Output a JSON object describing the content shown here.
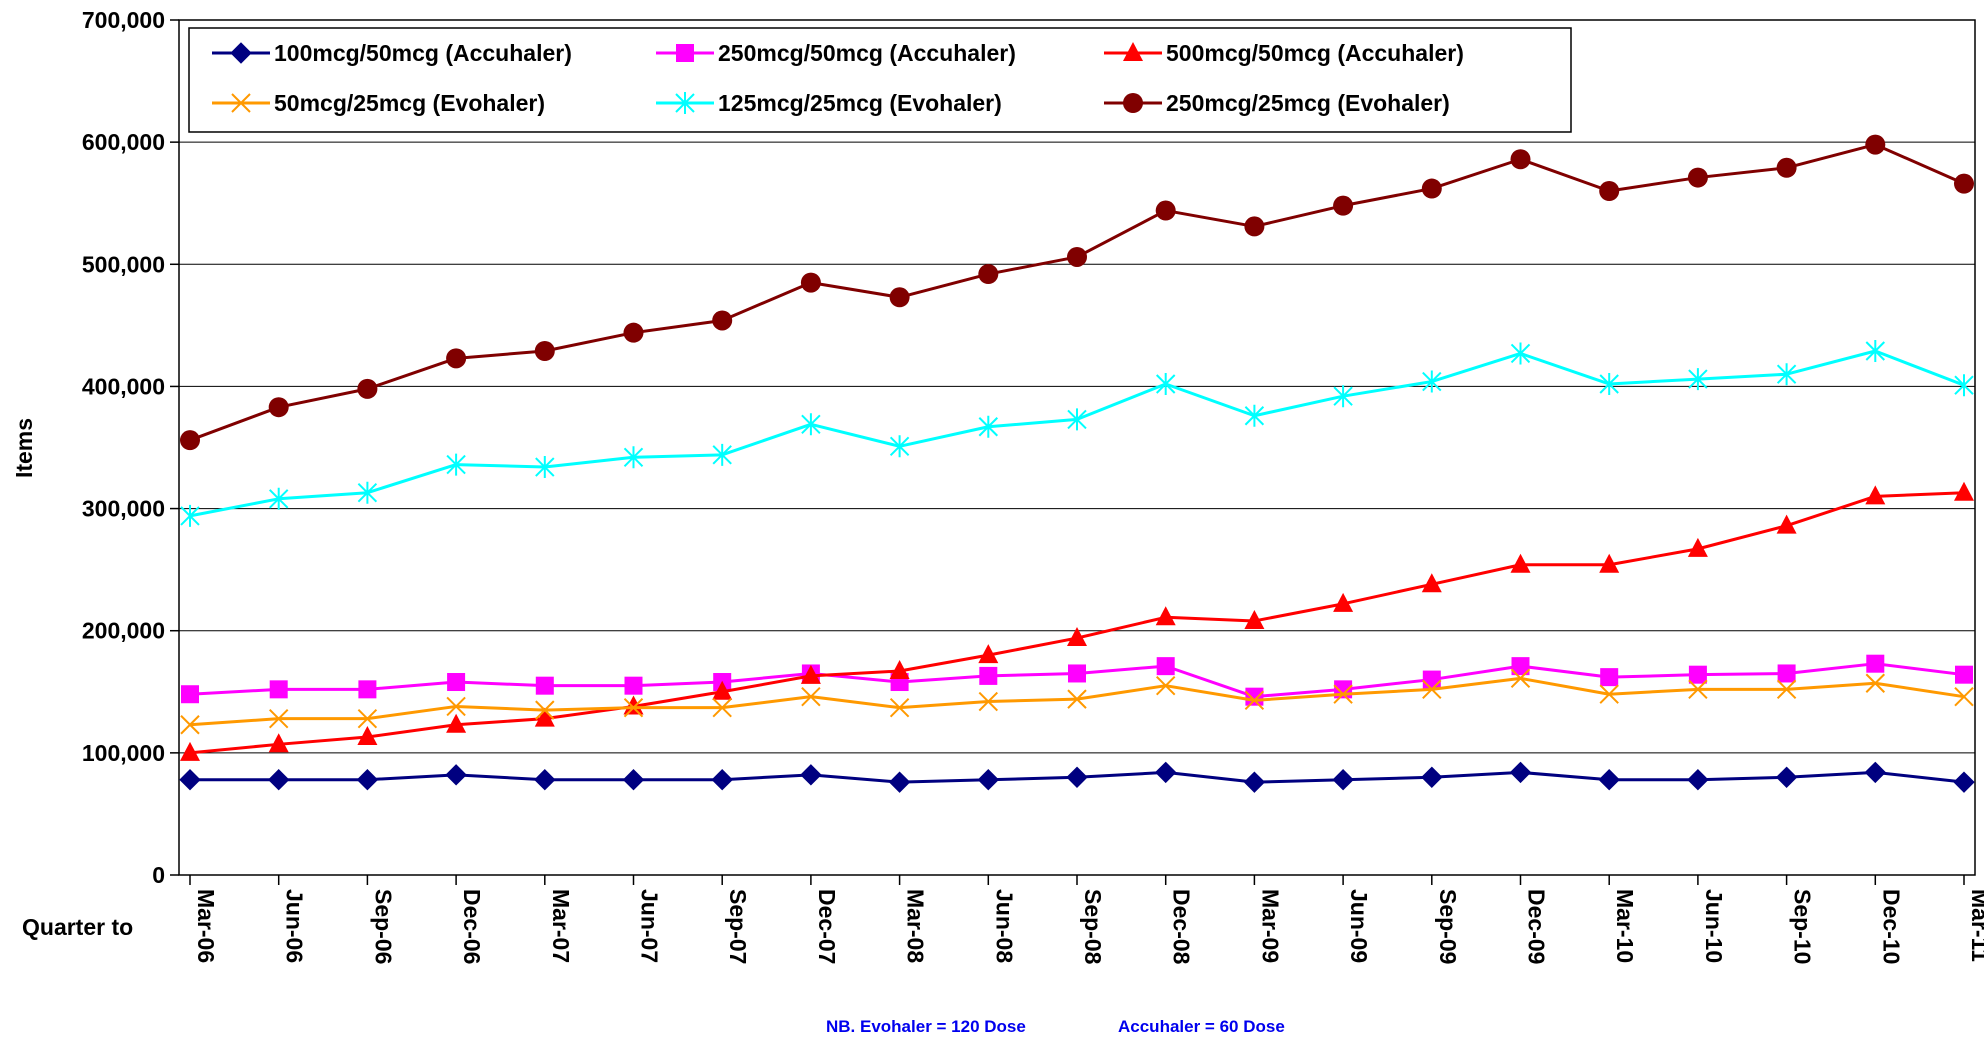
{
  "chart_data": {
    "type": "line",
    "title": "",
    "ylabel": "Items",
    "xlabel": "Quarter to",
    "ylim": [
      0,
      700000
    ],
    "yticks": [
      0,
      100000,
      200000,
      300000,
      400000,
      500000,
      600000,
      700000
    ],
    "ytick_labels": [
      "0",
      "100,000",
      "200,000",
      "300,000",
      "400,000",
      "500,000",
      "600,000",
      "700,000"
    ],
    "grid": true,
    "legend_position": "top",
    "categories": [
      "Mar-06",
      "Jun-06",
      "Sep-06",
      "Dec-06",
      "Mar-07",
      "Jun-07",
      "Sep-07",
      "Dec-07",
      "Mar-08",
      "Jun-08",
      "Sep-08",
      "Dec-08",
      "Mar-09",
      "Jun-09",
      "Sep-09",
      "Dec-09",
      "Mar-10",
      "Jun-10",
      "Sep-10",
      "Dec-10",
      "Mar-11"
    ],
    "series": [
      {
        "name": "100mcg/50mcg (Accuhaler)",
        "color": "#000080",
        "marker": "diamond",
        "values": [
          78000,
          78000,
          78000,
          82000,
          78000,
          78000,
          78000,
          82000,
          76000,
          78000,
          80000,
          84000,
          76000,
          78000,
          80000,
          84000,
          78000,
          78000,
          80000,
          84000,
          76000
        ]
      },
      {
        "name": "250mcg/50mcg (Accuhaler)",
        "color": "#ff00ff",
        "marker": "square",
        "values": [
          148000,
          152000,
          152000,
          158000,
          155000,
          155000,
          158000,
          165000,
          158000,
          163000,
          165000,
          171000,
          146000,
          152000,
          160000,
          171000,
          162000,
          164000,
          165000,
          173000,
          164000
        ]
      },
      {
        "name": "500mcg/50mcg (Accuhaler)",
        "color": "#ff0000",
        "marker": "triangle",
        "values": [
          100000,
          107000,
          113000,
          123000,
          128000,
          138000,
          150000,
          163000,
          167000,
          180000,
          194000,
          211000,
          208000,
          222000,
          238000,
          254000,
          254000,
          267000,
          286000,
          310000,
          313000
        ]
      },
      {
        "name": "50mcg/25mcg (Evohaler)",
        "color": "#ff9900",
        "marker": "x",
        "values": [
          123000,
          128000,
          128000,
          138000,
          135000,
          137000,
          137000,
          146000,
          137000,
          142000,
          144000,
          155000,
          143000,
          148000,
          152000,
          161000,
          148000,
          152000,
          152000,
          157000,
          146000
        ]
      },
      {
        "name": "125mcg/25mcg (Evohaler)",
        "color": "#00ffff",
        "marker": "star",
        "values": [
          294000,
          308000,
          313000,
          336000,
          334000,
          342000,
          344000,
          369000,
          351000,
          367000,
          373000,
          402000,
          376000,
          392000,
          404000,
          427000,
          402000,
          406000,
          410000,
          429000,
          401000
        ]
      },
      {
        "name": "250mcg/25mcg (Evohaler)",
        "color": "#800000",
        "marker": "circle",
        "values": [
          356000,
          383000,
          398000,
          423000,
          429000,
          444000,
          454000,
          485000,
          473000,
          492000,
          506000,
          544000,
          531000,
          548000,
          562000,
          586000,
          560000,
          571000,
          579000,
          598000,
          566000
        ]
      }
    ],
    "annotations": [
      "NB. Evohaler = 120 Dose",
      "Accuhaler = 60 Dose"
    ]
  }
}
